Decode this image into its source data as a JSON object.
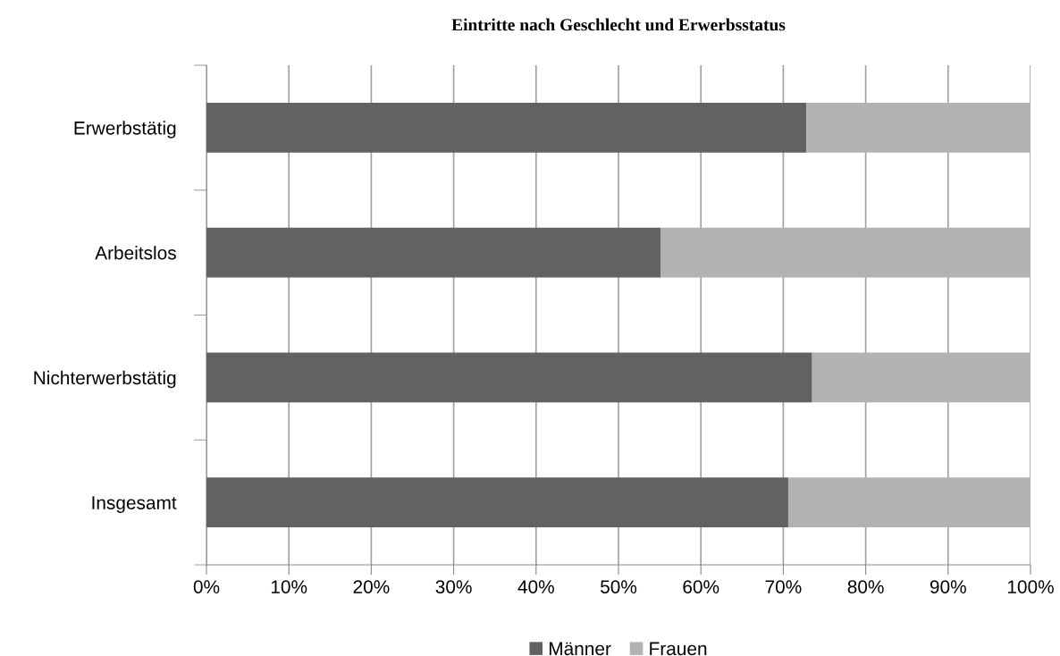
{
  "chart_data": {
    "type": "bar",
    "orientation": "horizontal",
    "stacked": true,
    "title": "Eintritte nach Geschlecht und Erwerbsstatus",
    "categories": [
      "Erwerbstätig",
      "Arbeitslos",
      "Nichterwerbstätig",
      "Insgesamt"
    ],
    "series": [
      {
        "name": "Männer",
        "color": "#626262",
        "values": [
          72.8,
          55.1,
          73.5,
          70.6
        ]
      },
      {
        "name": "Frauen",
        "color": "#b2b2b2",
        "values": [
          27.2,
          44.9,
          26.5,
          29.4
        ]
      }
    ],
    "xlim": [
      0,
      100
    ],
    "xticks": [
      {
        "value": 0,
        "label": "0%"
      },
      {
        "value": 10,
        "label": "10%"
      },
      {
        "value": 20,
        "label": "20%"
      },
      {
        "value": 30,
        "label": "30%"
      },
      {
        "value": 40,
        "label": "40%"
      },
      {
        "value": 50,
        "label": "50%"
      },
      {
        "value": 60,
        "label": "60%"
      },
      {
        "value": 70,
        "label": "70%"
      },
      {
        "value": 80,
        "label": "80%"
      },
      {
        "value": 90,
        "label": "90%"
      },
      {
        "value": 100,
        "label": "100%"
      }
    ],
    "grid": "x",
    "legend": "bottom"
  }
}
